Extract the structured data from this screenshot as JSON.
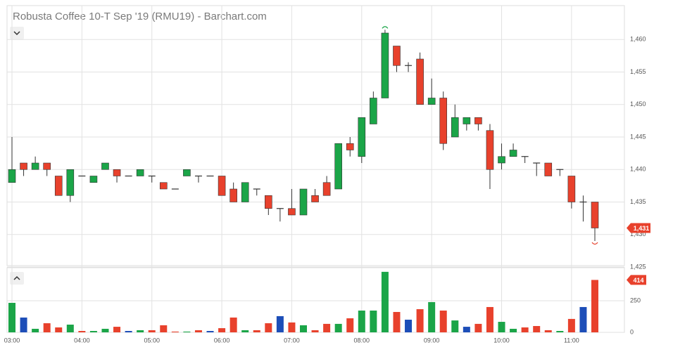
{
  "chart_data": [
    {
      "type": "candlestick",
      "title": "Robusta Coffee 10-T Sep '19 (RMU19) - Barchart.com",
      "categories": [
        "03:00",
        null,
        null,
        null,
        null,
        null,
        "04:00",
        null,
        null,
        null,
        null,
        null,
        "05:00",
        null,
        null,
        null,
        null,
        null,
        "06:00",
        null,
        null,
        null,
        null,
        null,
        "07:00",
        null,
        null,
        null,
        null,
        null,
        "08:00",
        null,
        null,
        null,
        null,
        null,
        "09:00",
        null,
        null,
        null,
        null,
        null,
        "10:00",
        null,
        null,
        null,
        null,
        null,
        "11:00",
        null,
        null
      ],
      "open": [
        1438,
        1441,
        1440,
        1441,
        1439,
        1436,
        1439,
        1438,
        1440,
        1440,
        1439,
        1439,
        1439,
        1438,
        1437,
        1439,
        1439,
        1439,
        1439,
        1437,
        1435,
        1437,
        1436,
        1434,
        1434,
        1433,
        1436,
        1438,
        1437,
        1444,
        1442,
        1447,
        1451,
        1459,
        1456,
        1457,
        1450,
        1451,
        1445,
        1447,
        1448,
        1446,
        1441,
        1442,
        1442,
        1441,
        1441,
        1440,
        1439,
        1435,
        1435
      ],
      "high": [
        1445,
        1441,
        1442,
        1441,
        1439,
        1440,
        1439,
        1439,
        1441,
        1440,
        1439,
        1440,
        1439,
        1438,
        1437,
        1440,
        1439,
        1439,
        1439,
        1438,
        1438,
        1437,
        1436,
        1434,
        1437,
        1437,
        1437,
        1439,
        1444,
        1445,
        1448,
        1452,
        1461.5,
        1459,
        1456.5,
        1458,
        1454,
        1452,
        1450,
        1448,
        1448,
        1447,
        1444,
        1444,
        1442,
        1441,
        1441,
        1440,
        1439,
        1436,
        1435
      ],
      "low": [
        1438,
        1439,
        1440,
        1439,
        1436,
        1435,
        1439,
        1438,
        1440,
        1438,
        1439,
        1439,
        1438,
        1437,
        1437,
        1439,
        1438,
        1439,
        1436,
        1435,
        1435,
        1436,
        1433,
        1432,
        1433,
        1433,
        1435,
        1436,
        1437,
        1442,
        1441,
        1447,
        1451,
        1455,
        1455,
        1450,
        1450,
        1443,
        1445,
        1446,
        1446,
        1437,
        1440,
        1442,
        1441,
        1439,
        1439,
        1439,
        1434,
        1432,
        1429
      ],
      "close": [
        1440,
        1440,
        1441,
        1440,
        1436,
        1440,
        1439,
        1439,
        1441,
        1439,
        1439,
        1440,
        1439,
        1437,
        1437,
        1440,
        1439,
        1439,
        1436,
        1435,
        1438,
        1437,
        1434,
        1434,
        1433,
        1437,
        1435,
        1436,
        1444,
        1443,
        1448,
        1451,
        1461,
        1456,
        1456,
        1450,
        1451,
        1444,
        1448,
        1448,
        1447,
        1440,
        1442,
        1443,
        1442,
        1441,
        1439,
        1440,
        1435,
        1435,
        1431
      ],
      "last_label": "1,431",
      "up_color": "#1ba548",
      "down_color": "#e8412c",
      "flat_color": "#333333",
      "ylim": [
        1425,
        1465
      ],
      "yticks": [
        {
          "value": 1425,
          "label": "1,425"
        },
        {
          "value": 1430,
          "label": "1,430"
        },
        {
          "value": 1435,
          "label": "1,435"
        },
        {
          "value": 1440,
          "label": "1,440"
        },
        {
          "value": 1445,
          "label": "1,445"
        },
        {
          "value": 1450,
          "label": "1,450"
        },
        {
          "value": 1455,
          "label": "1,455"
        },
        {
          "value": 1460,
          "label": "1,460"
        }
      ],
      "grid": true
    },
    {
      "type": "bar",
      "values": [
        233,
        117,
        28,
        72,
        39,
        61,
        11,
        11,
        28,
        44,
        11,
        17,
        17,
        56,
        6,
        6,
        17,
        11,
        33,
        117,
        17,
        17,
        72,
        128,
        78,
        56,
        17,
        67,
        67,
        111,
        172,
        172,
        478,
        161,
        100,
        183,
        239,
        172,
        94,
        44,
        67,
        200,
        83,
        28,
        39,
        50,
        17,
        11,
        106,
        200,
        414
      ],
      "colors": [
        "#1ba548",
        "#1d4eb8",
        "#1ba548",
        "#e8412c",
        "#e8412c",
        "#1ba548",
        "#e8412c",
        "#1ba548",
        "#1ba548",
        "#e8412c",
        "#1d4eb8",
        "#1ba548",
        "#e8412c",
        "#e8412c",
        "#e8412c",
        "#1ba548",
        "#e8412c",
        "#1d4eb8",
        "#e8412c",
        "#e8412c",
        "#1ba548",
        "#e8412c",
        "#e8412c",
        "#1d4eb8",
        "#e8412c",
        "#1ba548",
        "#e8412c",
        "#e8412c",
        "#1ba548",
        "#e8412c",
        "#1ba548",
        "#1ba548",
        "#1ba548",
        "#e8412c",
        "#1d4eb8",
        "#e8412c",
        "#1ba548",
        "#e8412c",
        "#1ba548",
        "#1d4eb8",
        "#e8412c",
        "#e8412c",
        "#1ba548",
        "#1ba548",
        "#e8412c",
        "#e8412c",
        "#e8412c",
        "#1ba548",
        "#e8412c",
        "#1d4eb8",
        "#e8412c"
      ],
      "ylim": [
        0,
        505
      ],
      "yticks": [
        0,
        250
      ],
      "grid": true
    }
  ]
}
